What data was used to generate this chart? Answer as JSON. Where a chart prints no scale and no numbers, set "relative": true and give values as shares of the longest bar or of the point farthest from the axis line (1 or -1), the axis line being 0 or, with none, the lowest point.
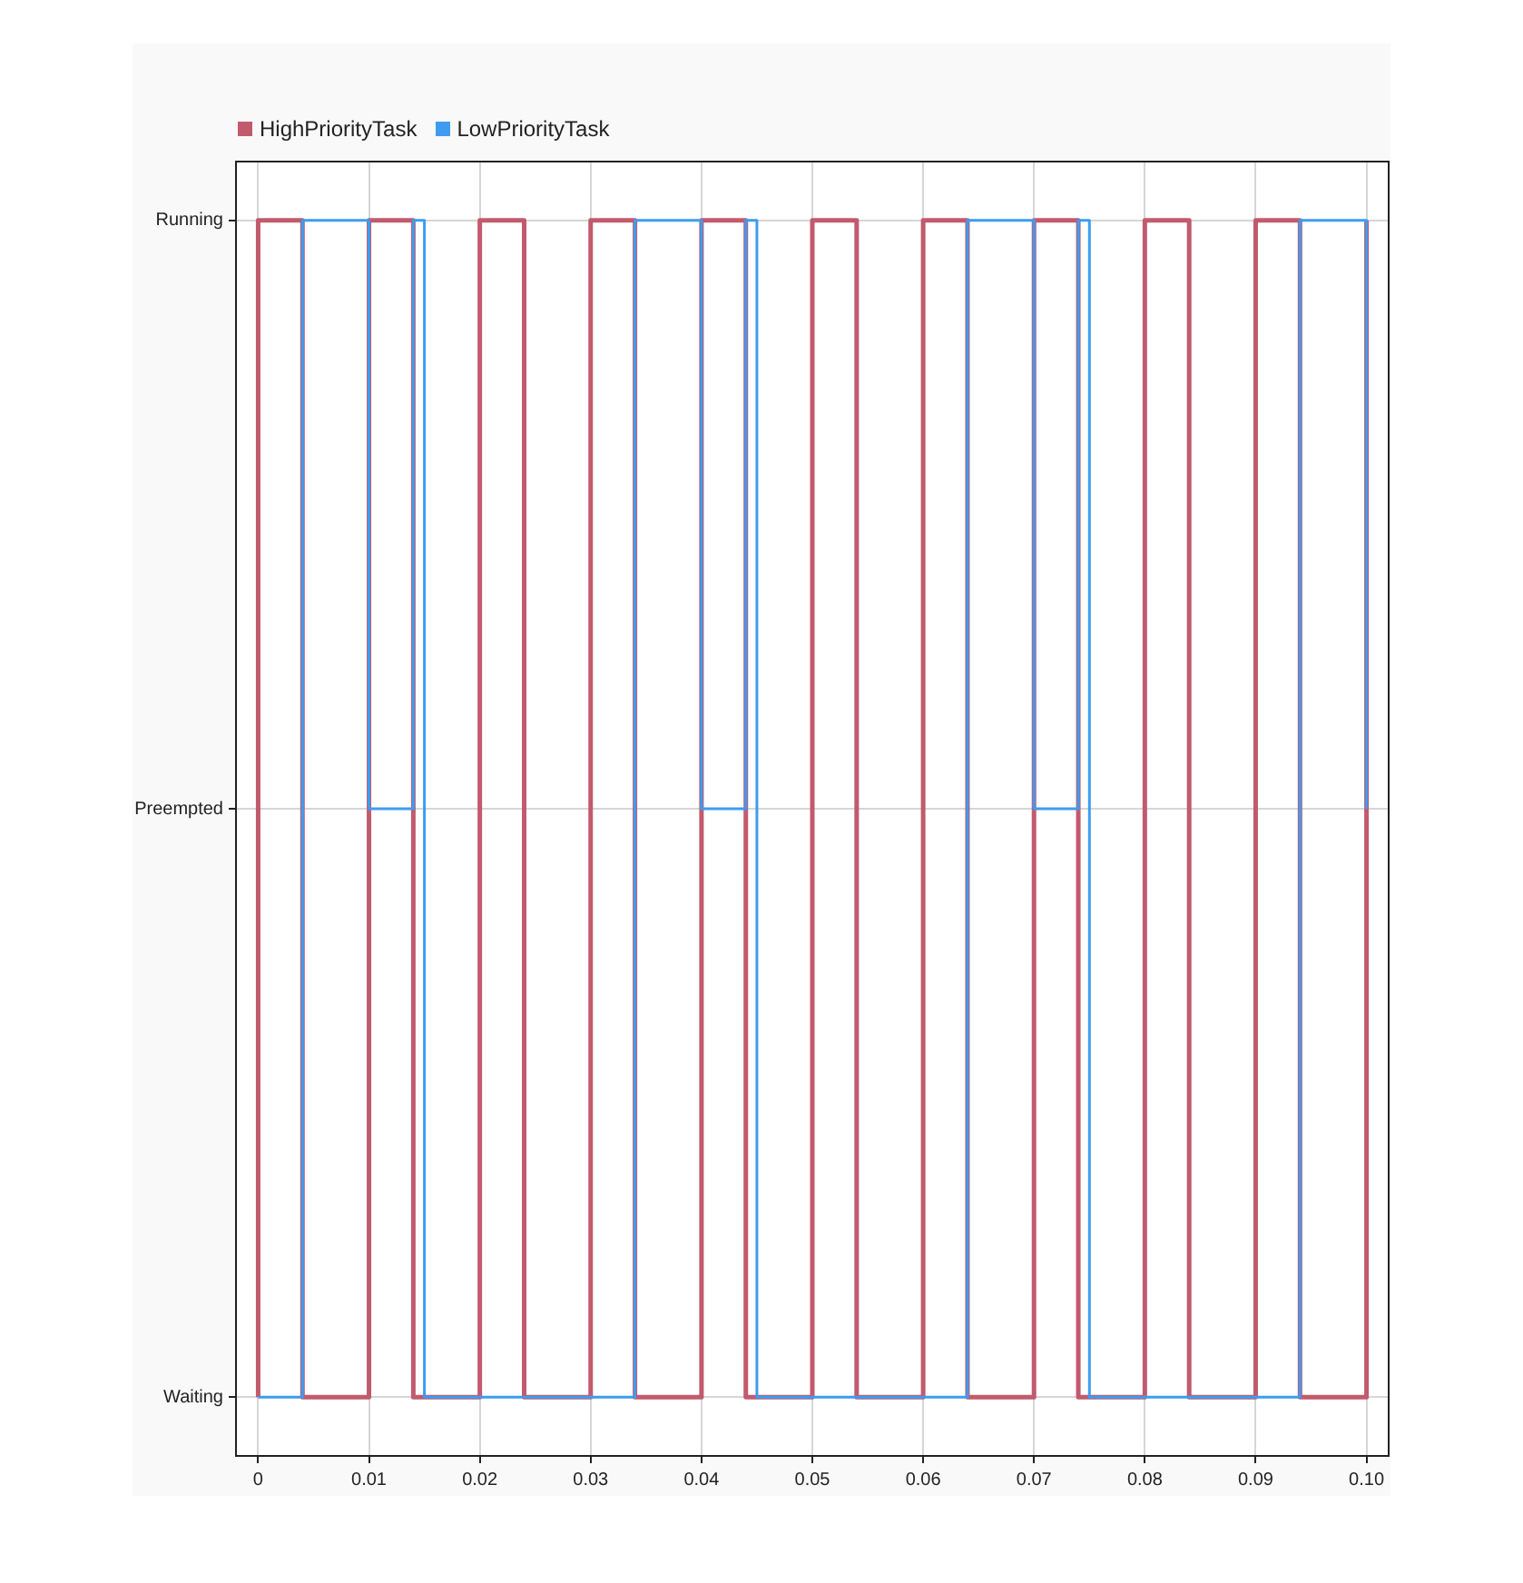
{
  "chart_data": {
    "type": "step",
    "relative": true,
    "x": [
      0,
      0,
      0.004,
      0.01,
      0.014,
      0.02,
      0.024,
      0.03,
      0.034,
      0.04,
      0.044,
      0.05,
      0.054,
      0.06,
      0.064,
      0.07,
      0.074,
      0.08,
      0.084,
      0.09,
      0.094,
      0.1
    ],
    "series": [
      {
        "name": "HighPriorityTask",
        "color": "#c25a6e",
        "values": [
          0,
          1,
          0,
          1,
          0,
          1,
          0,
          1,
          0,
          1,
          0,
          1,
          0,
          1,
          0,
          1,
          0,
          1,
          0,
          1,
          0,
          1
        ]
      },
      {
        "name": "LowPriorityTask",
        "color": "#3d9cf0",
        "x": [
          0,
          0.004,
          0.01,
          0.014,
          0.015,
          0.034,
          0.04,
          0.044,
          0.045,
          0.064,
          0.07,
          0.074,
          0.075,
          0.094,
          0.1
        ],
        "values": [
          0,
          1,
          0.5,
          1,
          0,
          1,
          0.5,
          1,
          0,
          1,
          0.5,
          1,
          0,
          1,
          0.5
        ]
      }
    ],
    "xlim": [
      -0.002,
      0.102
    ],
    "xticks": [
      0,
      0.01,
      0.02,
      0.03,
      0.04,
      0.05,
      0.06,
      0.07,
      0.08,
      0.09,
      {
        "value": 0.1,
        "label": "0.10"
      }
    ],
    "annotations": [
      "Waiting",
      "Preempted",
      "Running"
    ],
    "grid": true,
    "legend": "top left"
  }
}
